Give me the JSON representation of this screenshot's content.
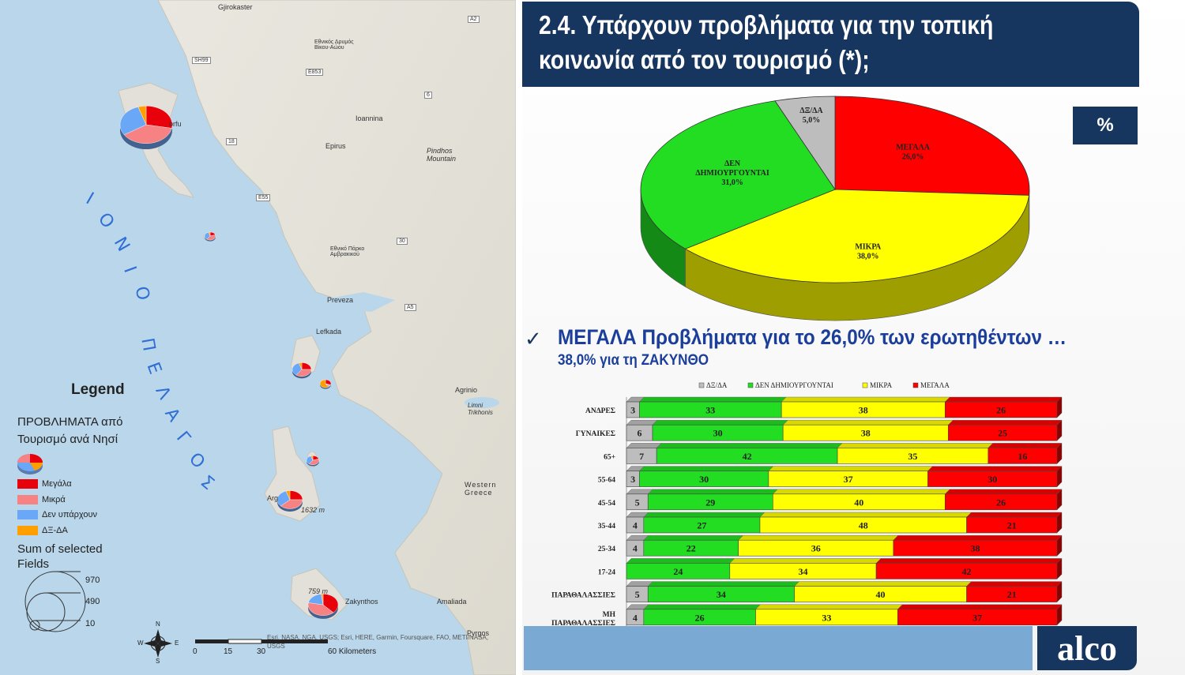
{
  "title": "2.4. Υπάρχουν προβλήματα για την τοπική κοινωνία από τον τουρισμό (*);",
  "title_line1": "2.4. Υπάρχουν προβλήματα για την τοπική",
  "title_line2": "κοινωνία από τον τουρισμό (*);",
  "percent_badge": "%",
  "headline": "ΜΕΓΑΛΑ Προβλήματα για το 26,0% των ερωτηθέντων …",
  "subline": "38,0% για τη ΖΑΚΥΝΘΟ",
  "check_glyph": "✓",
  "logo": "alco",
  "colors": {
    "dxda": "#bdbdbd",
    "den": "#22dd22",
    "mikra": "#ffff00",
    "megala": "#ff0000",
    "navy": "#16365f"
  },
  "map": {
    "sea_letters_1": [
      "Ι",
      "Ο",
      "Ν",
      "Ι",
      "Ο"
    ],
    "sea_letters_2": [
      "Π",
      "Ε",
      "Λ",
      "Α",
      "Γ",
      "Ο",
      "Σ"
    ],
    "places": [
      "Gjirokaster",
      "Ioannina",
      "Epirus",
      "Pindhos Mountain",
      "Εθνικός Δρυμός Βίκου-Αώου",
      "Εθνικό Πάρκο Αμβρακικού",
      "Preveza",
      "Lefkada",
      "Agrinio",
      "Limni Trikhonis",
      "Western Greece",
      "Amaliada",
      "Pyrgos",
      "Zakynthos",
      "Arg",
      "orfu",
      "1632 m",
      "759 m"
    ],
    "roads": [
      "A2",
      "SH99",
      "E853",
      "6",
      "18",
      "E55",
      "30",
      "A5"
    ],
    "legend_title": "Legend",
    "legend_sub": [
      "ΠΡΟΒΛΗΜΑΤΑ από",
      "Τουρισμό ανά Νησί"
    ],
    "legend_items": [
      {
        "label": "Μεγάλα",
        "color": "#e8000b"
      },
      {
        "label": "Μικρά",
        "color": "#f78283"
      },
      {
        "label": "Δεν υπάρχουν",
        "color": "#6aa8f7"
      },
      {
        "label": "ΔΞ-ΔΑ",
        "color": "#ff9f00"
      }
    ],
    "sum_label": [
      "Sum of selected",
      "Fields"
    ],
    "sum_values": [
      "970",
      "490",
      "10"
    ],
    "compass": [
      "N",
      "E",
      "S",
      "W"
    ],
    "scale": [
      "0",
      "15",
      "30",
      "60 Kilometers"
    ],
    "attribution": "Esri, NASA, NGA, USGS; Esri, HERE, Garmin, Foursquare, FAO, METI/NASA, USGS"
  },
  "chart_data": [
    {
      "type": "pie",
      "categories": [
        "ΜΕΓΑΛΑ",
        "ΜΙΚΡΑ",
        "ΔΕΝ ΔΗΜΙΟΥΡΓΟΥΝΤΑΙ",
        "ΔΞ/ΔΑ"
      ],
      "values": [
        26.0,
        38.0,
        31.0,
        5.0
      ],
      "value_labels": [
        "26,0%",
        "38,0%",
        "31,0%",
        "5,0%"
      ],
      "label_lines": [
        [
          "ΜΕΓΑΛΑ"
        ],
        [
          "ΜΙΚΡΑ"
        ],
        [
          "ΔΕΝ",
          "ΔΗΜΙΟΥΡΓΟΥΝΤΑΙ"
        ],
        [
          "ΔΞ/ΔΑ"
        ]
      ],
      "colors": [
        "#ff0000",
        "#ffff00",
        "#22dd22",
        "#bdbdbd"
      ]
    },
    {
      "type": "bar",
      "stacked": "100%",
      "orientation": "horizontal",
      "legend_position": "top",
      "categories": [
        "ΑΝΔΡΕΣ",
        "ΓΥΝΑΙΚΕΣ",
        "65+",
        "55-64",
        "45-54",
        "35-44",
        "25-34",
        "17-24",
        "ΠΑΡΑΘΑΛΑΣΣΙΕΣ",
        "ΜΗ ΠΑΡΑΘΑΛΑΣΣΙΕΣ"
      ],
      "category_lines": [
        [
          "ΑΝΔΡΕΣ"
        ],
        [
          "ΓΥΝΑΙΚΕΣ"
        ],
        [
          "65+"
        ],
        [
          "55-64"
        ],
        [
          "45-54"
        ],
        [
          "35-44"
        ],
        [
          "25-34"
        ],
        [
          "17-24"
        ],
        [
          "ΠΑΡΑΘΑΛΑΣΣΙΕΣ"
        ],
        [
          "ΜΗ",
          "ΠΑΡΑΘΑΛΑΣΣΙΕΣ"
        ]
      ],
      "series": [
        {
          "name": "ΔΞ/ΔΑ",
          "color": "#bdbdbd",
          "values": [
            3,
            6,
            7,
            3,
            5,
            4,
            4,
            0,
            5,
            4
          ]
        },
        {
          "name": "ΔΕΝ ΔΗΜΙΟΥΡΓΟΥΝΤΑΙ",
          "color": "#22dd22",
          "values": [
            33,
            30,
            42,
            30,
            29,
            27,
            22,
            24,
            34,
            26
          ]
        },
        {
          "name": "ΜΙΚΡΑ",
          "color": "#ffff00",
          "values": [
            38,
            38,
            35,
            37,
            40,
            48,
            36,
            34,
            40,
            33
          ]
        },
        {
          "name": "ΜΕΓΑΛΑ",
          "color": "#ff0000",
          "values": [
            26,
            25,
            16,
            30,
            26,
            21,
            38,
            42,
            21,
            37
          ]
        }
      ]
    }
  ]
}
